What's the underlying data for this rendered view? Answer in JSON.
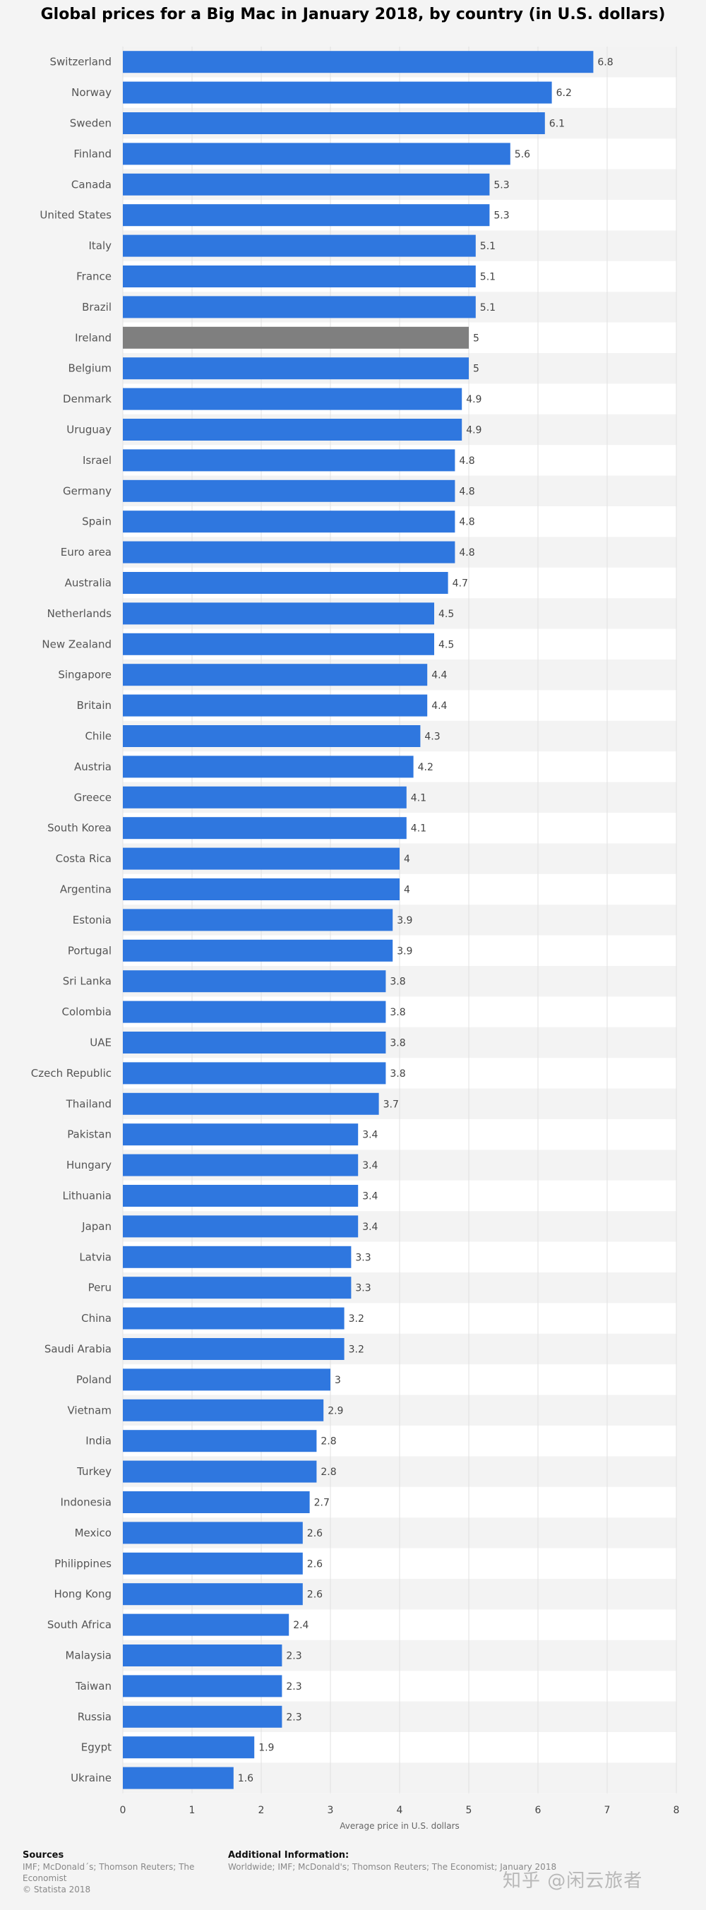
{
  "chart_data": {
    "type": "bar",
    "orientation": "horizontal",
    "title": "Global prices for a Big Mac in January 2018, by country (in U.S. dollars)",
    "xlabel": "Average price in U.S. dollars",
    "ylabel": "",
    "xlim": [
      0,
      8
    ],
    "xticks": [
      "0",
      "1",
      "2",
      "3",
      "4",
      "5",
      "6",
      "7",
      "8"
    ],
    "grid": true,
    "bar_color": "#2f77df",
    "highlight_color": "#7f7f7f",
    "highlight_category": "Ireland",
    "categories": [
      "Switzerland",
      "Norway",
      "Sweden",
      "Finland",
      "Canada",
      "United States",
      "Italy",
      "France",
      "Brazil",
      "Ireland",
      "Belgium",
      "Denmark",
      "Uruguay",
      "Israel",
      "Germany",
      "Spain",
      "Euro area",
      "Australia",
      "Netherlands",
      "New Zealand",
      "Singapore",
      "Britain",
      "Chile",
      "Austria",
      "Greece",
      "South Korea",
      "Costa Rica",
      "Argentina",
      "Estonia",
      "Portugal",
      "Sri Lanka",
      "Colombia",
      "UAE",
      "Czech Republic",
      "Thailand",
      "Pakistan",
      "Hungary",
      "Lithuania",
      "Japan",
      "Latvia",
      "Peru",
      "China",
      "Saudi Arabia",
      "Poland",
      "Vietnam",
      "India",
      "Turkey",
      "Indonesia",
      "Mexico",
      "Philippines",
      "Hong Kong",
      "South Africa",
      "Malaysia",
      "Taiwan",
      "Russia",
      "Egypt",
      "Ukraine"
    ],
    "values": [
      6.8,
      6.2,
      6.1,
      5.6,
      5.3,
      5.3,
      5.1,
      5.1,
      5.1,
      5,
      5,
      4.9,
      4.9,
      4.8,
      4.8,
      4.8,
      4.8,
      4.7,
      4.5,
      4.5,
      4.4,
      4.4,
      4.3,
      4.2,
      4.1,
      4.1,
      4,
      4,
      3.9,
      3.9,
      3.8,
      3.8,
      3.8,
      3.8,
      3.7,
      3.4,
      3.4,
      3.4,
      3.4,
      3.3,
      3.3,
      3.2,
      3.2,
      3,
      2.9,
      2.8,
      2.8,
      2.7,
      2.6,
      2.6,
      2.6,
      2.4,
      2.3,
      2.3,
      2.3,
      1.9,
      1.6
    ]
  },
  "footer": {
    "sources_heading": "Sources",
    "sources_text": "IMF; McDonald´s; Thomson Reuters; The Economist",
    "copyright": "© Statista 2018",
    "additional_heading": "Additional Information:",
    "additional_text": "Worldwide; IMF; McDonald's; Thomson Reuters; The Economist; January 2018"
  },
  "watermark": "知乎 @闲云旅者"
}
